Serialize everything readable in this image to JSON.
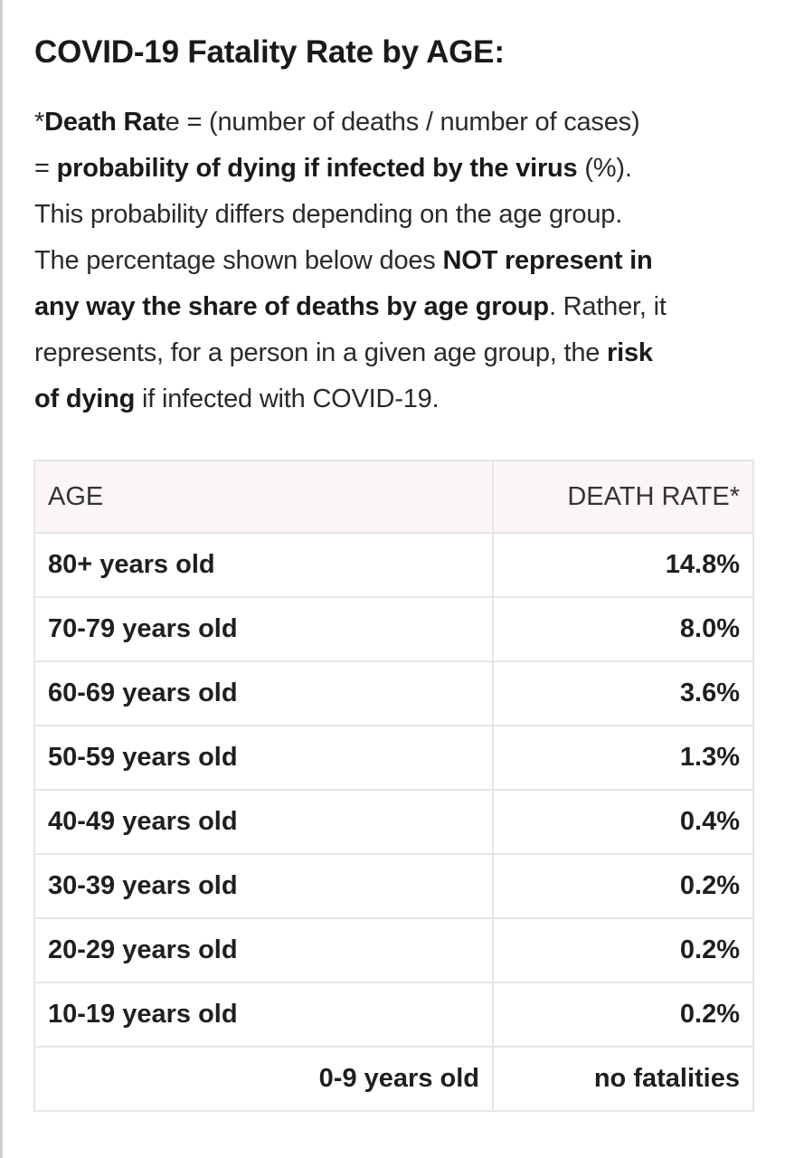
{
  "header": {
    "title": "COVID-19 Fatality Rate by AGE:"
  },
  "description": {
    "line1_prefix": "*",
    "line1_bold": "Death Rat",
    "line1_rest": "e = (number of deaths / number of cases)",
    "line2_prefix": "= ",
    "line2_bold": "probability of dying if infected by the virus",
    "line2_rest": " (%).",
    "line3": "This probability differs depending on the age group.",
    "line4_text": "The percentage shown below does ",
    "line4_bold": "NOT represent in",
    "line5_bold": "any way the share of deaths by age group",
    "line5_rest": ". Rather, it",
    "line6_text": "represents, for a person in a given age group, the ",
    "line6_bold": "risk",
    "line7_bold": "of dying",
    "line7_rest": " if infected with COVID-19."
  },
  "table": {
    "headers": {
      "age": "AGE",
      "rate": "DEATH RATE*"
    },
    "rows": [
      {
        "age": "80+ years old",
        "rate": "14.8%"
      },
      {
        "age": "70-79 years old",
        "rate": "8.0%"
      },
      {
        "age": "60-69 years old",
        "rate": "3.6%"
      },
      {
        "age": "50-59 years old",
        "rate": "1.3%"
      },
      {
        "age": "40-49 years old",
        "rate": "0.4%"
      },
      {
        "age": "30-39 years old",
        "rate": "0.2%"
      },
      {
        "age": "20-29 years old",
        "rate": "0.2%"
      },
      {
        "age": "10-19 years old",
        "rate": "0.2%"
      },
      {
        "age": "0-9 years old",
        "rate": "no fatalities"
      }
    ]
  }
}
